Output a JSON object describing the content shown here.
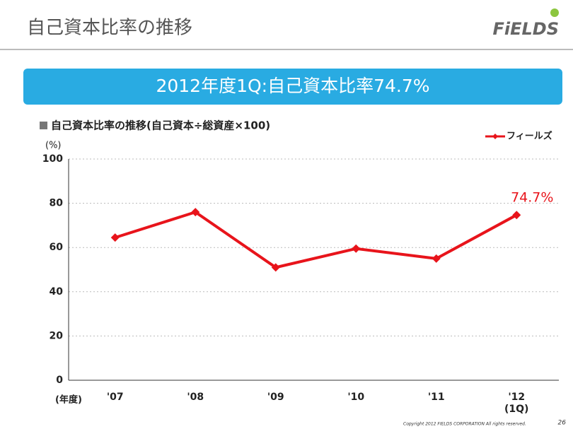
{
  "header": {
    "title": "自己資本比率の推移",
    "logo": "FiELDS"
  },
  "banner": "2012年度1Q:自己資本比率74.7%",
  "chart_data": {
    "type": "line",
    "title": "自己資本比率の推移(自己資本÷総資産×100)",
    "y_label": "(%)",
    "x_label": "(年度)",
    "categories": [
      "'07",
      "'08",
      "'09",
      "'10",
      "'11",
      "'12\n(1Q)"
    ],
    "series": [
      {
        "name": "フィールズ",
        "color": "#e8141b",
        "values": [
          64.5,
          76,
          51,
          59.5,
          55,
          74.7
        ],
        "value_labels": [
          null,
          null,
          null,
          null,
          null,
          "74.7%"
        ]
      }
    ],
    "ylim": [
      0,
      100
    ],
    "yticks": [
      0,
      20,
      40,
      60,
      80,
      100
    ],
    "grid": true,
    "legend": "top-right"
  },
  "footer": {
    "copyright": "Copyright 2012 FIELDS CORPORATION All rights reserved.",
    "page": "26"
  }
}
